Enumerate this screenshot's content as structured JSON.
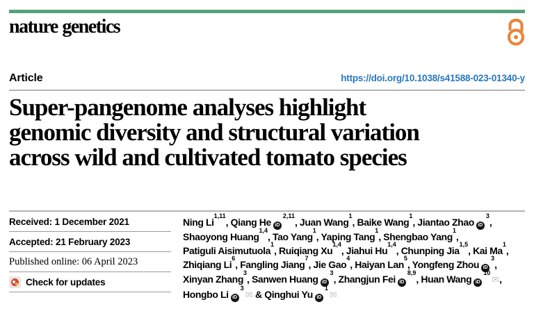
{
  "journal": {
    "name": "nature genetics"
  },
  "colors": {
    "accent_green": "#57a17f",
    "open_access_orange": "#e8863c",
    "link_blue": "#2878bd",
    "rule_gray": "#b3b3b3"
  },
  "article": {
    "type_label": "Article",
    "doi_url": "https://doi.org/10.1038/s41588-023-01340-y"
  },
  "title": {
    "lines": [
      "Super-pangenome analyses highlight",
      "genomic diversity and structural variation",
      "across wild and cultivated tomato species"
    ]
  },
  "dates": {
    "received": "Received: 1 December 2021",
    "accepted": "Accepted: 21 February 2023",
    "published": "Published online: 06 April 2023"
  },
  "check_updates": {
    "label": "Check for updates"
  },
  "authors": {
    "orcid_icon_label": "iD",
    "envelope_glyph": "✉",
    "lines": [
      [
        {
          "t": "Ning Li"
        },
        {
          "sup": "1,11"
        },
        {
          "t": ", Qiang He"
        },
        {
          "icon": "orcid"
        },
        {
          "sup": "2,11"
        },
        {
          "t": ", Juan Wang"
        },
        {
          "sup": "1"
        },
        {
          "t": ", Baike Wang"
        },
        {
          "sup": "1"
        },
        {
          "t": ", Jiantao Zhao"
        },
        {
          "icon": "orcid"
        },
        {
          "sup": "3"
        },
        {
          "t": ","
        }
      ],
      [
        {
          "t": "Shaoyong Huang"
        },
        {
          "sup": "1,4"
        },
        {
          "t": ", Tao Yang"
        },
        {
          "sup": "1"
        },
        {
          "t": ", Yaping Tang"
        },
        {
          "sup": "1"
        },
        {
          "t": ", Shengbao Yang"
        },
        {
          "sup": "1"
        },
        {
          "t": ","
        }
      ],
      [
        {
          "t": "Patiguli Aisimutuola"
        },
        {
          "sup": "1"
        },
        {
          "t": ", Ruiqiang Xu"
        },
        {
          "sup": "1,4"
        },
        {
          "t": ", Jiahui Hu"
        },
        {
          "sup": "1,4"
        },
        {
          "t": ", Chunping Jia"
        },
        {
          "sup": "1,5"
        },
        {
          "t": ", Kai Ma"
        },
        {
          "sup": "1"
        },
        {
          "t": ","
        }
      ],
      [
        {
          "t": "Zhiqiang Li"
        },
        {
          "sup": "6"
        },
        {
          "t": ", Fangling Jiang"
        },
        {
          "sup": "7"
        },
        {
          "t": ", Jie Gao"
        },
        {
          "sup": "4"
        },
        {
          "t": ", Haiyan Lan"
        },
        {
          "sup": "5"
        },
        {
          "t": ", Yongfeng Zhou"
        },
        {
          "icon": "orcid"
        },
        {
          "sup": "3"
        },
        {
          "t": ","
        }
      ],
      [
        {
          "t": "Xinyan Zhang"
        },
        {
          "sup": "3"
        },
        {
          "t": ", Sanwen Huang"
        },
        {
          "icon": "orcid"
        },
        {
          "sup": "3"
        },
        {
          "t": ", Zhangjun Fei"
        },
        {
          "icon": "orcid"
        },
        {
          "sup": "8,9"
        },
        {
          "t": ", Huan Wang"
        },
        {
          "icon": "orcid"
        },
        {
          "sup": "10"
        },
        {
          "icon": "envelope"
        },
        {
          "t": ","
        }
      ],
      [
        {
          "t": "Hongbo Li"
        },
        {
          "icon": "orcid"
        },
        {
          "sup": "3"
        },
        {
          "icon": "envelope"
        },
        {
          "t": " & Qinghui Yu"
        },
        {
          "icon": "orcid"
        },
        {
          "sup": "1"
        },
        {
          "icon": "envelope"
        }
      ]
    ]
  }
}
